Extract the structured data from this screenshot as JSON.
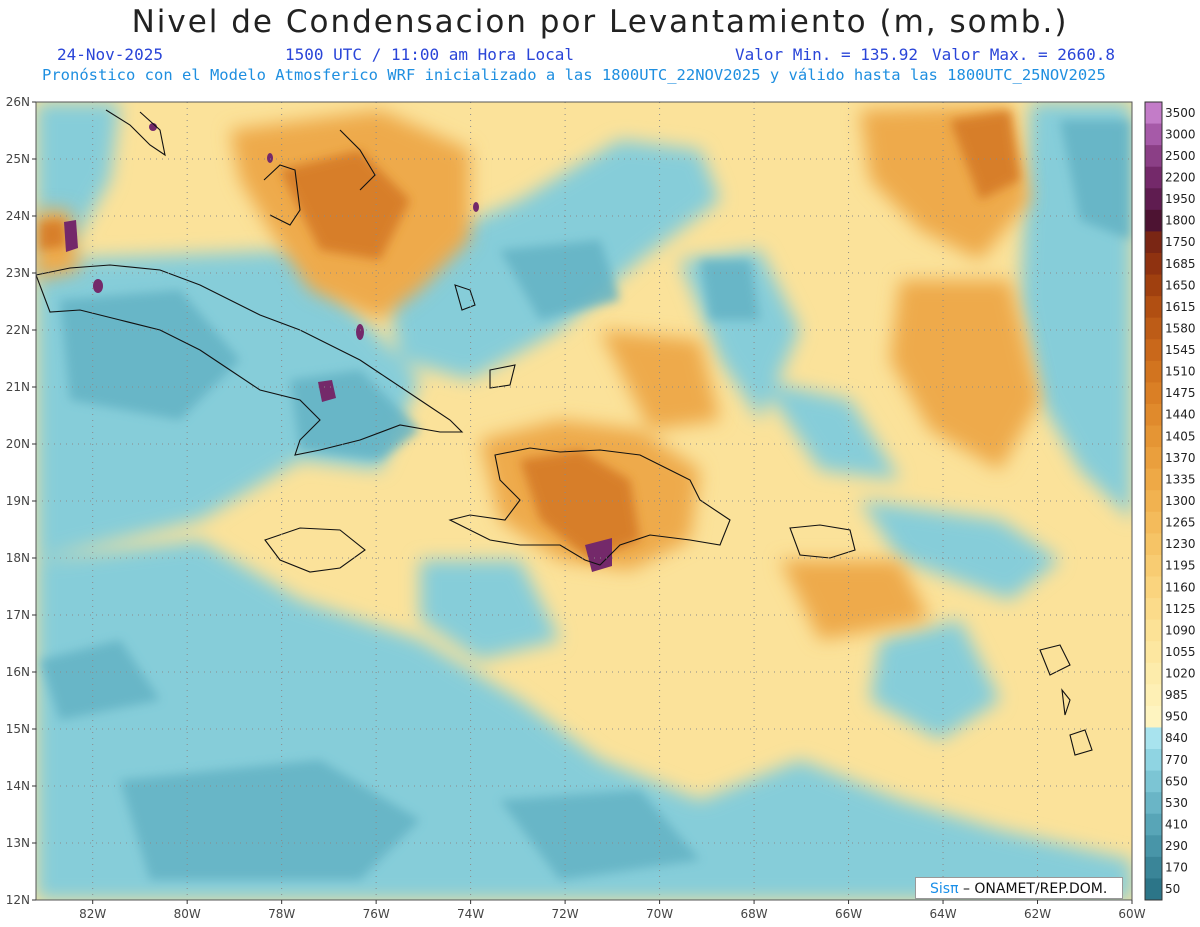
{
  "title": "Nivel de Condensacion por Levantamiento (m, somb.)",
  "date": "24-Nov-2025",
  "time": "1500 UTC / 11:00 am Hora Local",
  "min_label": "Valor Min. = 135.92",
  "max_label": "Valor Max. = 2660.8",
  "forecast_line": "Pronóstico con el Modelo Atmosferico WRF inicializado a las 1800UTC_22NOV2025 y válido hasta las  1800UTC_25NOV2025",
  "credit": {
    "brand": "Sisπ",
    "org": " – ONAMET/REP.DOM."
  },
  "map": {
    "lon_ticks": [
      "82W",
      "80W",
      "78W",
      "76W",
      "74W",
      "72W",
      "70W",
      "68W",
      "66W",
      "64W",
      "62W",
      "60W"
    ],
    "lat_ticks": [
      "26N",
      "25N",
      "24N",
      "23N",
      "22N",
      "21N",
      "20N",
      "19N",
      "18N",
      "17N",
      "16N",
      "15N",
      "14N",
      "13N",
      "12N"
    ],
    "lon_range": [
      -83.2,
      -60
    ],
    "lat_range": [
      12,
      26
    ],
    "grid": true
  },
  "colorbar": {
    "labels": [
      "3500",
      "3000",
      "2500",
      "2200",
      "1950",
      "1800",
      "1750",
      "1685",
      "1650",
      "1615",
      "1580",
      "1545",
      "1510",
      "1475",
      "1440",
      "1405",
      "1370",
      "1335",
      "1300",
      "1265",
      "1230",
      "1195",
      "1160",
      "1125",
      "1090",
      "1055",
      "1020",
      "985",
      "950",
      "840",
      "770",
      "650",
      "530",
      "410",
      "290",
      "170",
      "50"
    ],
    "colors": [
      "#c37cc8",
      "#a65aa8",
      "#8b3f86",
      "#74296a",
      "#5f1c50",
      "#4d1332",
      "#7a2614",
      "#8f3210",
      "#a0400f",
      "#b14f12",
      "#bd5c17",
      "#c9681b",
      "#d2741f",
      "#da7f25",
      "#e08a2c",
      "#e59534",
      "#ea9f3d",
      "#eea946",
      "#f1b250",
      "#f4bb5b",
      "#f6c466",
      "#f8cc72",
      "#fad47e",
      "#fbdb8a",
      "#fce296",
      "#fde7a0",
      "#fdecab",
      "#fef0b5",
      "#fef4c0",
      "#a8e3ee",
      "#8fd4e2",
      "#7cc5d4",
      "#6ab5c6",
      "#58a5b7",
      "#4895a8",
      "#3a8598",
      "#2c7588"
    ]
  }
}
